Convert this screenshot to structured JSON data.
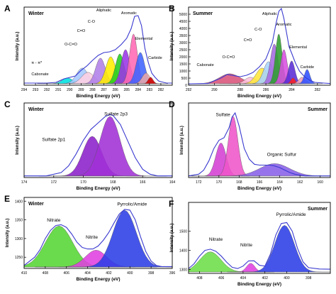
{
  "chart_data": [
    {
      "panel_label": "A",
      "season": "Winter",
      "type": "area",
      "xlabel": "Binding Energy (eV)",
      "ylabel": "Intensity (a.u.)",
      "xlim": [
        294,
        281
      ],
      "x_reversed": true,
      "xticks": [
        "294",
        "293",
        "292",
        "291",
        "290",
        "289",
        "288",
        "287",
        "286",
        "285",
        "284",
        "283",
        "282"
      ],
      "grid": false,
      "annotations": [
        "Cabonate",
        "π - π*",
        "O-C=O",
        "C=O",
        "C-O",
        "Aliphatic",
        "Aromatic",
        "Elemental",
        "Carbide"
      ],
      "envelope": {
        "x": [
          294,
          292,
          291.2,
          290.5,
          290,
          289.5,
          289,
          288.5,
          288,
          287.5,
          287,
          286.5,
          286,
          285.5,
          285,
          284.6,
          284.3,
          284,
          283.7,
          283.4,
          283.1,
          282.8,
          282.5,
          282.2,
          282,
          281.5,
          281
        ],
        "y": [
          3,
          3,
          4,
          9,
          11,
          13,
          21,
          27,
          35,
          42,
          46,
          47,
          50,
          57,
          66,
          80,
          97,
          98,
          84,
          52,
          32,
          17,
          11,
          6,
          5,
          3,
          3
        ]
      },
      "series": [
        {
          "color": "#00e0e0",
          "center": 290.2,
          "fwhm": 1.1,
          "height": 8
        },
        {
          "color": "#a6c8ff",
          "center": 288.9,
          "fwhm": 1.2,
          "height": 22
        },
        {
          "color": "#ffd0e2",
          "center": 288.4,
          "fwhm": 1.3,
          "height": 16
        },
        {
          "color": "#b07fe8",
          "center": 287.3,
          "fwhm": 1.0,
          "height": 36
        },
        {
          "color": "#ffee00",
          "center": 286.4,
          "fwhm": 1.0,
          "height": 38
        },
        {
          "color": "#22cc22",
          "center": 285.6,
          "fwhm": 0.9,
          "height": 42
        },
        {
          "color": "#9a34e6",
          "center": 285.1,
          "fwhm": 0.9,
          "height": 48
        },
        {
          "color": "#ff69b4",
          "center": 284.4,
          "fwhm": 0.8,
          "height": 70
        },
        {
          "color": "#3f63ff",
          "center": 283.8,
          "fwhm": 0.9,
          "height": 44
        },
        {
          "color": "#e8a8a8",
          "center": 283.3,
          "fwhm": 0.8,
          "height": 15
        },
        {
          "color": "#cc0000",
          "center": 282.9,
          "fwhm": 0.5,
          "height": 9
        }
      ]
    },
    {
      "panel_label": "B",
      "season": "Summer",
      "type": "area",
      "xlabel": "Binding Energy (eV)",
      "ylabel": "Intensity (a.u.)",
      "xlim": [
        292,
        281
      ],
      "x_reversed": true,
      "xticks": [
        "292",
        "290",
        "288",
        "286",
        "284",
        "282"
      ],
      "yticks": [
        "0",
        "500",
        "1000",
        "1500",
        "2000",
        "2500",
        "3000",
        "3500",
        "4000",
        "4500",
        "5000"
      ],
      "ylim": [
        0,
        5500
      ],
      "grid": false,
      "annotations": [
        "Cabonate",
        "O-C=O",
        "C=O",
        "C-O",
        "Aliphatic",
        "Aromatic",
        "Elemental",
        "Carbide"
      ],
      "envelope": {
        "x": [
          292,
          290.5,
          289.5,
          289,
          288.5,
          288,
          287.5,
          287,
          286.5,
          286,
          285.5,
          285.2,
          285,
          284.8,
          284.6,
          284.4,
          284.2,
          284,
          283.7,
          283.4,
          283,
          282.6,
          282.2,
          281.5,
          281
        ],
        "y": [
          100,
          120,
          500,
          760,
          680,
          600,
          700,
          900,
          1300,
          1850,
          3000,
          4400,
          5200,
          5400,
          4700,
          3700,
          2700,
          2250,
          1550,
          1000,
          600,
          350,
          200,
          150,
          120
        ]
      },
      "series": [
        {
          "color": "#d9537a",
          "center": 288.8,
          "fwhm": 1.9,
          "height": 700
        },
        {
          "color": "#ffc2dc",
          "center": 287.2,
          "fwhm": 1.0,
          "height": 450
        },
        {
          "color": "#ffe63b",
          "center": 286.3,
          "fwhm": 1.1,
          "height": 1100
        },
        {
          "color": "#a6d2ff",
          "center": 285.8,
          "fwhm": 0.9,
          "height": 1550
        },
        {
          "color": "#a56be0",
          "center": 285.35,
          "fwhm": 0.7,
          "height": 2800
        },
        {
          "color": "#2e9e2e",
          "center": 285.0,
          "fwhm": 0.6,
          "height": 3500
        },
        {
          "color": "#d84fe0",
          "center": 284.6,
          "fwhm": 0.6,
          "height": 2400
        },
        {
          "color": "#5a2bd6",
          "center": 284.0,
          "fwhm": 0.6,
          "height": 1600
        },
        {
          "color": "#ff2020",
          "center": 283.9,
          "fwhm": 0.4,
          "height": 400
        },
        {
          "color": "#f0a0b8",
          "center": 283.2,
          "fwhm": 0.6,
          "height": 450
        },
        {
          "color": "#2f4eff",
          "center": 282.8,
          "fwhm": 0.5,
          "height": 1000
        }
      ]
    },
    {
      "panel_label": "C",
      "season": "Winter",
      "type": "area",
      "xlabel": "Binding Energy (eV)",
      "ylabel": "Intensity (a.u.)",
      "xlim": [
        174,
        164
      ],
      "x_reversed": true,
      "xticks": [
        "174",
        "172",
        "170",
        "168",
        "166",
        "164"
      ],
      "grid": false,
      "annotations": [
        "Sulfate 2p1",
        "Sulfate 2p3"
      ],
      "envelope": {
        "x": [
          174,
          172.5,
          171.5,
          171,
          170.5,
          170,
          169.5,
          169,
          168.5,
          168.2,
          168,
          167.5,
          167,
          166.5,
          166,
          165.5,
          165,
          164.5,
          164
        ],
        "y": [
          2,
          2,
          6,
          14,
          28,
          45,
          58,
          66,
          74,
          76,
          75,
          64,
          44,
          24,
          10,
          4,
          2,
          2,
          2
        ]
      },
      "series": [
        {
          "color": "#8b1fc9",
          "center": 169.4,
          "fwhm": 1.5,
          "height": 48
        },
        {
          "color": "#a030d6",
          "center": 168.2,
          "fwhm": 1.6,
          "height": 72
        }
      ]
    },
    {
      "panel_label": "D",
      "season": "Summer",
      "type": "area",
      "xlabel": "Binding Energy (eV)",
      "ylabel": "Intensity (a.u.)",
      "xlim": [
        173,
        159
      ],
      "x_reversed": true,
      "xticks": [
        "172",
        "170",
        "168",
        "166",
        "164",
        "162",
        "160"
      ],
      "grid": false,
      "annotations": [
        "Sulfate",
        "Organic Sulfur"
      ],
      "envelope": {
        "x": [
          173,
          172,
          171.5,
          171,
          170.5,
          170,
          169.5,
          169,
          168.7,
          168.4,
          168,
          167.5,
          167,
          166.5,
          166,
          165.5,
          165,
          164.5,
          164,
          163.5,
          163,
          162.5,
          162,
          161.5,
          161,
          160,
          159
        ],
        "y": [
          2,
          4,
          9,
          20,
          35,
          45,
          48,
          60,
          73,
          78,
          62,
          35,
          22,
          16,
          15,
          15,
          15,
          14,
          12,
          9,
          6,
          4,
          3,
          2,
          2,
          2,
          2
        ]
      },
      "series": [
        {
          "color": "#d43fd4",
          "center": 169.8,
          "fwhm": 1.2,
          "height": 40
        },
        {
          "color": "#ee55c8",
          "center": 168.6,
          "fwhm": 1.1,
          "height": 72
        },
        {
          "color": "#8860e8",
          "center": 164.5,
          "fwhm": 3.5,
          "height": 15
        }
      ]
    },
    {
      "panel_label": "E",
      "season": "Winter",
      "type": "area",
      "xlabel": "Binding Energy (eV)",
      "ylabel": "Intensity (a.u.)",
      "xlim": [
        410,
        396
      ],
      "x_reversed": true,
      "xticks": [
        "410",
        "408",
        "406",
        "404",
        "402",
        "400",
        "398",
        "396"
      ],
      "yticks": [
        "1250",
        "1300",
        "1350",
        "1400"
      ],
      "ylim": [
        1220,
        1410
      ],
      "grid": false,
      "annotations": [
        "Nitrate",
        "Nitrite",
        "Pyrrolic/Amide"
      ],
      "envelope": {
        "x": [
          410,
          409,
          408.5,
          408,
          407.5,
          407,
          406.5,
          406,
          405.5,
          405,
          404.5,
          404,
          403.5,
          403,
          402.5,
          402,
          401.5,
          401,
          400.5,
          400,
          399.5,
          399,
          398.5,
          398,
          397.5,
          397,
          396
        ],
        "y": [
          1228,
          1250,
          1270,
          1300,
          1322,
          1335,
          1337,
          1330,
          1312,
          1290,
          1276,
          1272,
          1272,
          1280,
          1296,
          1316,
          1342,
          1366,
          1378,
          1376,
          1350,
          1305,
          1265,
          1240,
          1228,
          1225,
          1225
        ]
      },
      "series": [
        {
          "color": "#55d633",
          "center": 406.7,
          "fwhm": 3.0,
          "height": 110
        },
        {
          "color": "#e040e0",
          "center": 403.2,
          "fwhm": 2.4,
          "height": 45
        },
        {
          "color": "#2b3de6",
          "center": 400.5,
          "fwhm": 2.6,
          "height": 152
        }
      ]
    },
    {
      "panel_label": "F",
      "season": "Summer",
      "type": "area",
      "xlabel": "Binding Energy (eV)",
      "ylabel": "Intensity (a.u.)",
      "xlim": [
        409,
        396
      ],
      "x_reversed": true,
      "xticks": [
        "408",
        "406",
        "404",
        "402",
        "400",
        "398"
      ],
      "yticks": [
        "1300",
        "1400",
        "1500"
      ],
      "ylim": [
        1280,
        1650
      ],
      "grid": false,
      "annotations": [
        "Nitrate",
        "Nitrite",
        "Pyrrolic/Amide"
      ],
      "envelope": {
        "x": [
          409,
          408.5,
          408,
          407.5,
          407,
          406.5,
          406,
          405.5,
          405,
          404.5,
          404,
          403.5,
          403,
          402.5,
          402,
          401.5,
          401,
          400.5,
          400,
          399.5,
          399,
          398.5,
          398,
          397,
          396
        ],
        "y": [
          1305,
          1330,
          1370,
          1400,
          1406,
          1395,
          1370,
          1338,
          1312,
          1305,
          1318,
          1345,
          1346,
          1322,
          1318,
          1380,
          1480,
          1540,
          1545,
          1500,
          1410,
          1340,
          1310,
          1303,
          1302
        ]
      },
      "series": [
        {
          "color": "#6dde48",
          "center": 407.0,
          "fwhm": 2.3,
          "height": 105
        },
        {
          "color": "#e040e0",
          "center": 403.3,
          "fwhm": 0.9,
          "height": 45
        },
        {
          "color": "#2b3de6",
          "center": 400.2,
          "fwhm": 2.1,
          "height": 243
        }
      ]
    }
  ]
}
